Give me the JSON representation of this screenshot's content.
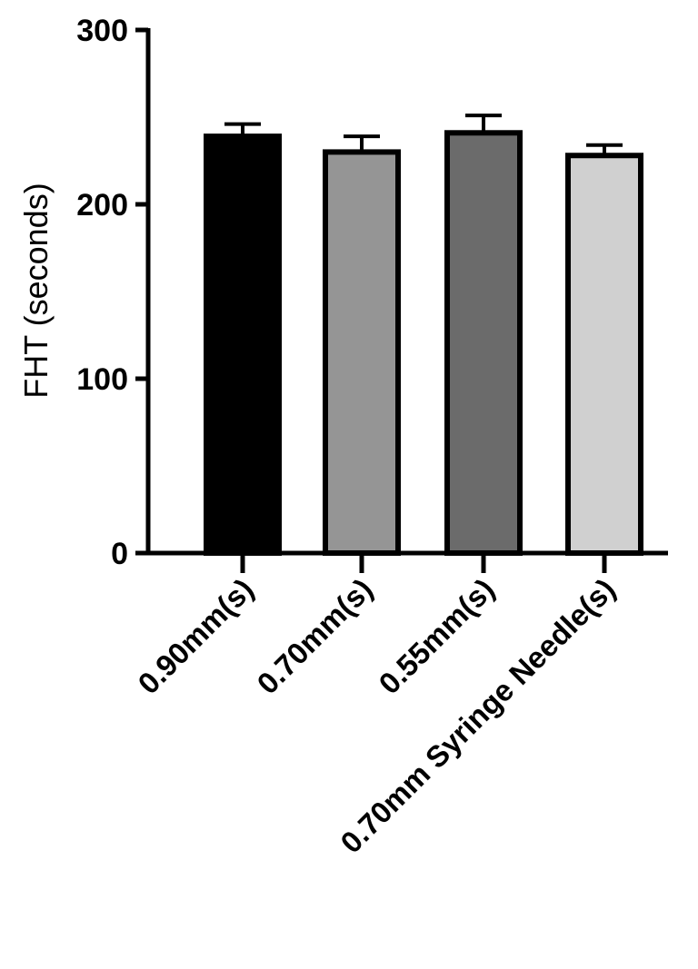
{
  "chart_data": {
    "type": "bar",
    "title": "",
    "xlabel": "",
    "ylabel": "FHT (seconds)",
    "ylim": [
      0,
      300
    ],
    "yticks": [
      0,
      100,
      200,
      300
    ],
    "grid": false,
    "categories": [
      "0.90mm(s)",
      "0.70mm(s)",
      "0.55mm(s)",
      "0.70mm Syringe Needle(s)"
    ],
    "values": [
      239,
      230,
      241,
      228
    ],
    "errors": [
      7,
      9,
      10,
      6
    ],
    "colors": [
      "#000000",
      "#959595",
      "#6b6b6b",
      "#d0d0d0"
    ]
  }
}
